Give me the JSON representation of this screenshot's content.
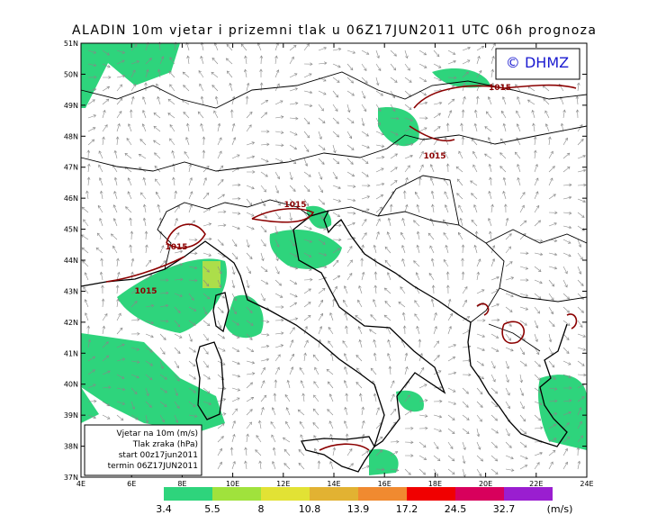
{
  "title": "ALADIN 10m vjetar i prizemni tlak u 06Z17JUN2011 UTC 06h prognoza",
  "logo": "© DHMZ",
  "lat_labels": [
    "51N",
    "50N",
    "49N",
    "48N",
    "47N",
    "46N",
    "45N",
    "44N",
    "43N",
    "42N",
    "41N",
    "40N",
    "39N",
    "38N",
    "37N"
  ],
  "lon_labels": [
    "4E",
    "6E",
    "8E",
    "10E",
    "12E",
    "14E",
    "16E",
    "18E",
    "20E",
    "22E",
    "24E"
  ],
  "isobar_labels": [
    "1015",
    "1015",
    "1015",
    "1015",
    "1015"
  ],
  "info_box": [
    "Vjetar na 10m (m/s)",
    "Tlak zraka (hPa)",
    "start 00z17jun2011",
    "termin 06Z17JUN2011"
  ],
  "legend": {
    "labels": [
      "3.4",
      "5.5",
      "8",
      "10.8",
      "13.9",
      "17.2",
      "24.5",
      "32.7"
    ],
    "colors": [
      "#2ed47c",
      "#a0e23c",
      "#e2e234",
      "#e2b232",
      "#f08a30",
      "#f00000",
      "#d8005c",
      "#9a1ed0"
    ],
    "unit": "(m/s)"
  }
}
